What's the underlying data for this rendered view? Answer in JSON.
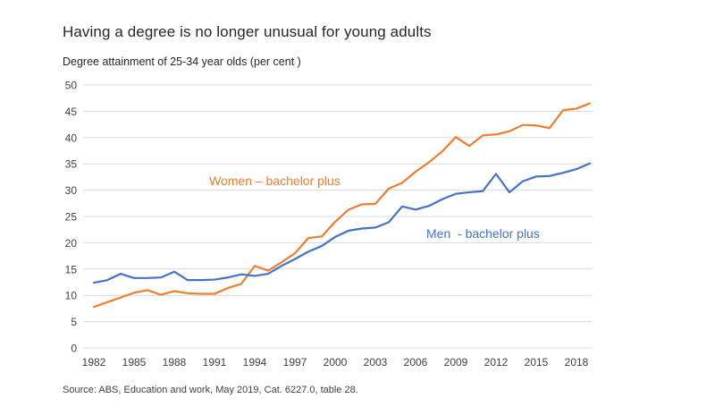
{
  "title": "Having a degree is no longer unusual for young adults",
  "subtitle": "Degree attainment of 25-34 year olds (per cent )",
  "source": "Source: ABS, Education and work, May 2019, Cat. 6227.0, table 28.",
  "chart_data": {
    "type": "line",
    "x": [
      1982,
      1983,
      1984,
      1985,
      1986,
      1987,
      1988,
      1989,
      1990,
      1991,
      1992,
      1993,
      1994,
      1995,
      1996,
      1997,
      1998,
      1999,
      2000,
      2001,
      2002,
      2003,
      2004,
      2005,
      2006,
      2007,
      2008,
      2009,
      2010,
      2011,
      2012,
      2013,
      2014,
      2015,
      2016,
      2017,
      2018,
      2019
    ],
    "series": [
      {
        "name": "Women – bachelor plus",
        "color": "#ED7D31",
        "values": [
          7.8,
          8.7,
          9.6,
          10.5,
          11.0,
          10.1,
          10.8,
          10.4,
          10.3,
          10.3,
          11.4,
          12.2,
          15.6,
          14.7,
          16.3,
          18.0,
          20.9,
          21.2,
          24.0,
          26.3,
          27.3,
          27.4,
          30.3,
          31.4,
          33.5,
          35.3,
          37.4,
          40.1,
          38.4,
          40.4,
          40.6,
          41.2,
          42.4,
          42.3,
          41.8,
          45.2,
          45.5,
          46.5
        ]
      },
      {
        "name": "Men  - bachelor plus",
        "color": "#4472C4",
        "values": [
          12.4,
          12.9,
          14.1,
          13.3,
          13.3,
          13.4,
          14.5,
          12.9,
          12.9,
          13.0,
          13.4,
          14.0,
          13.7,
          14.1,
          15.6,
          16.9,
          18.3,
          19.4,
          21.1,
          22.3,
          22.7,
          22.9,
          23.9,
          26.9,
          26.3,
          27.0,
          28.3,
          29.3,
          29.6,
          29.8,
          33.1,
          29.6,
          31.7,
          32.6,
          32.7,
          33.3,
          34.0,
          35.1
        ]
      }
    ],
    "ylim": [
      0,
      50
    ],
    "y_tick_step": 5,
    "y_tick_labels": [
      "0",
      "5",
      "10",
      "15",
      "20",
      "25",
      "30",
      "35",
      "40",
      "45",
      "50"
    ],
    "x_tick_labels": [
      "1982",
      "1985",
      "1988",
      "1991",
      "1994",
      "1997",
      "2000",
      "2003",
      "2006",
      "2009",
      "2012",
      "2015",
      "2018"
    ],
    "x_tick_interval": 3,
    "grid": "horizontal",
    "gridline_color": "#D9D9D9",
    "axis_label_color": "#404040",
    "legend_position": "inline-labels"
  }
}
